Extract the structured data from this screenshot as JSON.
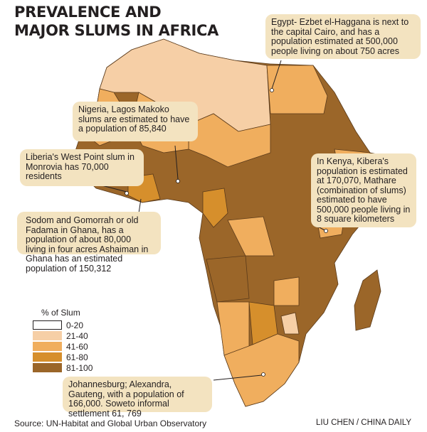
{
  "title_lines": [
    "PREVALENCE AND",
    "MAJOR SLUMS IN AFRICA"
  ],
  "callouts": {
    "egypt": "Egypt- Ezbet el-Haggana is next to the capital Cairo, and has a population estimated at  500,000 people living on about 750 acres",
    "nigeria": "Nigeria, Lagos Makoko slums are estimated to have a population of 85,840",
    "liberia": "Liberia's West Point slum in Monrovia has 70,000 residents",
    "ghana": "Sodom and Gomorrah or old Fadama in Ghana, has a population of about 80,000 living in four acres Ashaiman in Ghana has an estimated population of 150,312",
    "kenya": "In Kenya, Kibera's population is estimated at 170,070, Mathare (combination of slums) estimated to have 500,000 people  living in 8 square kilometers",
    "south_africa": "Johannesburg; Alexandra, Gauteng, with a population of 166,000. Soweto informal settlement 61, 769"
  },
  "legend": {
    "title": "% of Slum",
    "items": [
      {
        "label": "0-20",
        "color": "#ffffff"
      },
      {
        "label": "21-40",
        "color": "#f6cfa6"
      },
      {
        "label": "41-60",
        "color": "#f0ae5e"
      },
      {
        "label": "61-80",
        "color": "#d68f2c"
      },
      {
        "label": "81-100",
        "color": "#9b6629"
      }
    ]
  },
  "source": "Source: UN-Habitat and Global Urban Observatory",
  "credit": "LIU CHEN / CHINA DAILY"
}
